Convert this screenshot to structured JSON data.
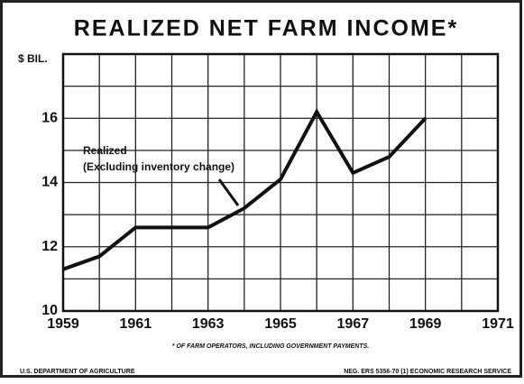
{
  "chart_data": {
    "type": "line",
    "title": "REALIZED NET FARM INCOME*",
    "y_label": "$ BIL.",
    "x": [
      1959,
      1960,
      1961,
      1962,
      1963,
      1964,
      1965,
      1966,
      1967,
      1968,
      1969
    ],
    "series": [
      {
        "name": "Realized",
        "color": "#111111",
        "values": [
          11.3,
          11.7,
          12.6,
          12.6,
          12.6,
          13.2,
          14.1,
          16.2,
          14.3,
          14.8,
          16.0
        ]
      }
    ],
    "annotation": "(Excluding inventory change)",
    "xlim": [
      1959,
      1971
    ],
    "xticks": [
      1959,
      1961,
      1963,
      1965,
      1967,
      1969,
      1971
    ],
    "minor_xticks": [
      1960,
      1962,
      1964,
      1966,
      1968,
      1970
    ],
    "ylim": [
      10,
      18
    ],
    "yticks": [
      10,
      12,
      14,
      16
    ],
    "minor_yticks": [
      11,
      13,
      15,
      17
    ],
    "grid": true,
    "footnote": "* OF FARM OPERATORS, INCLUDING GOVERNMENT PAYMENTS.",
    "source_left": "U.S. DEPARTMENT OF AGRICULTURE",
    "source_right": "NEG. ERS 5356-70 (1)   ECONOMIC RESEARCH SERVICE"
  }
}
